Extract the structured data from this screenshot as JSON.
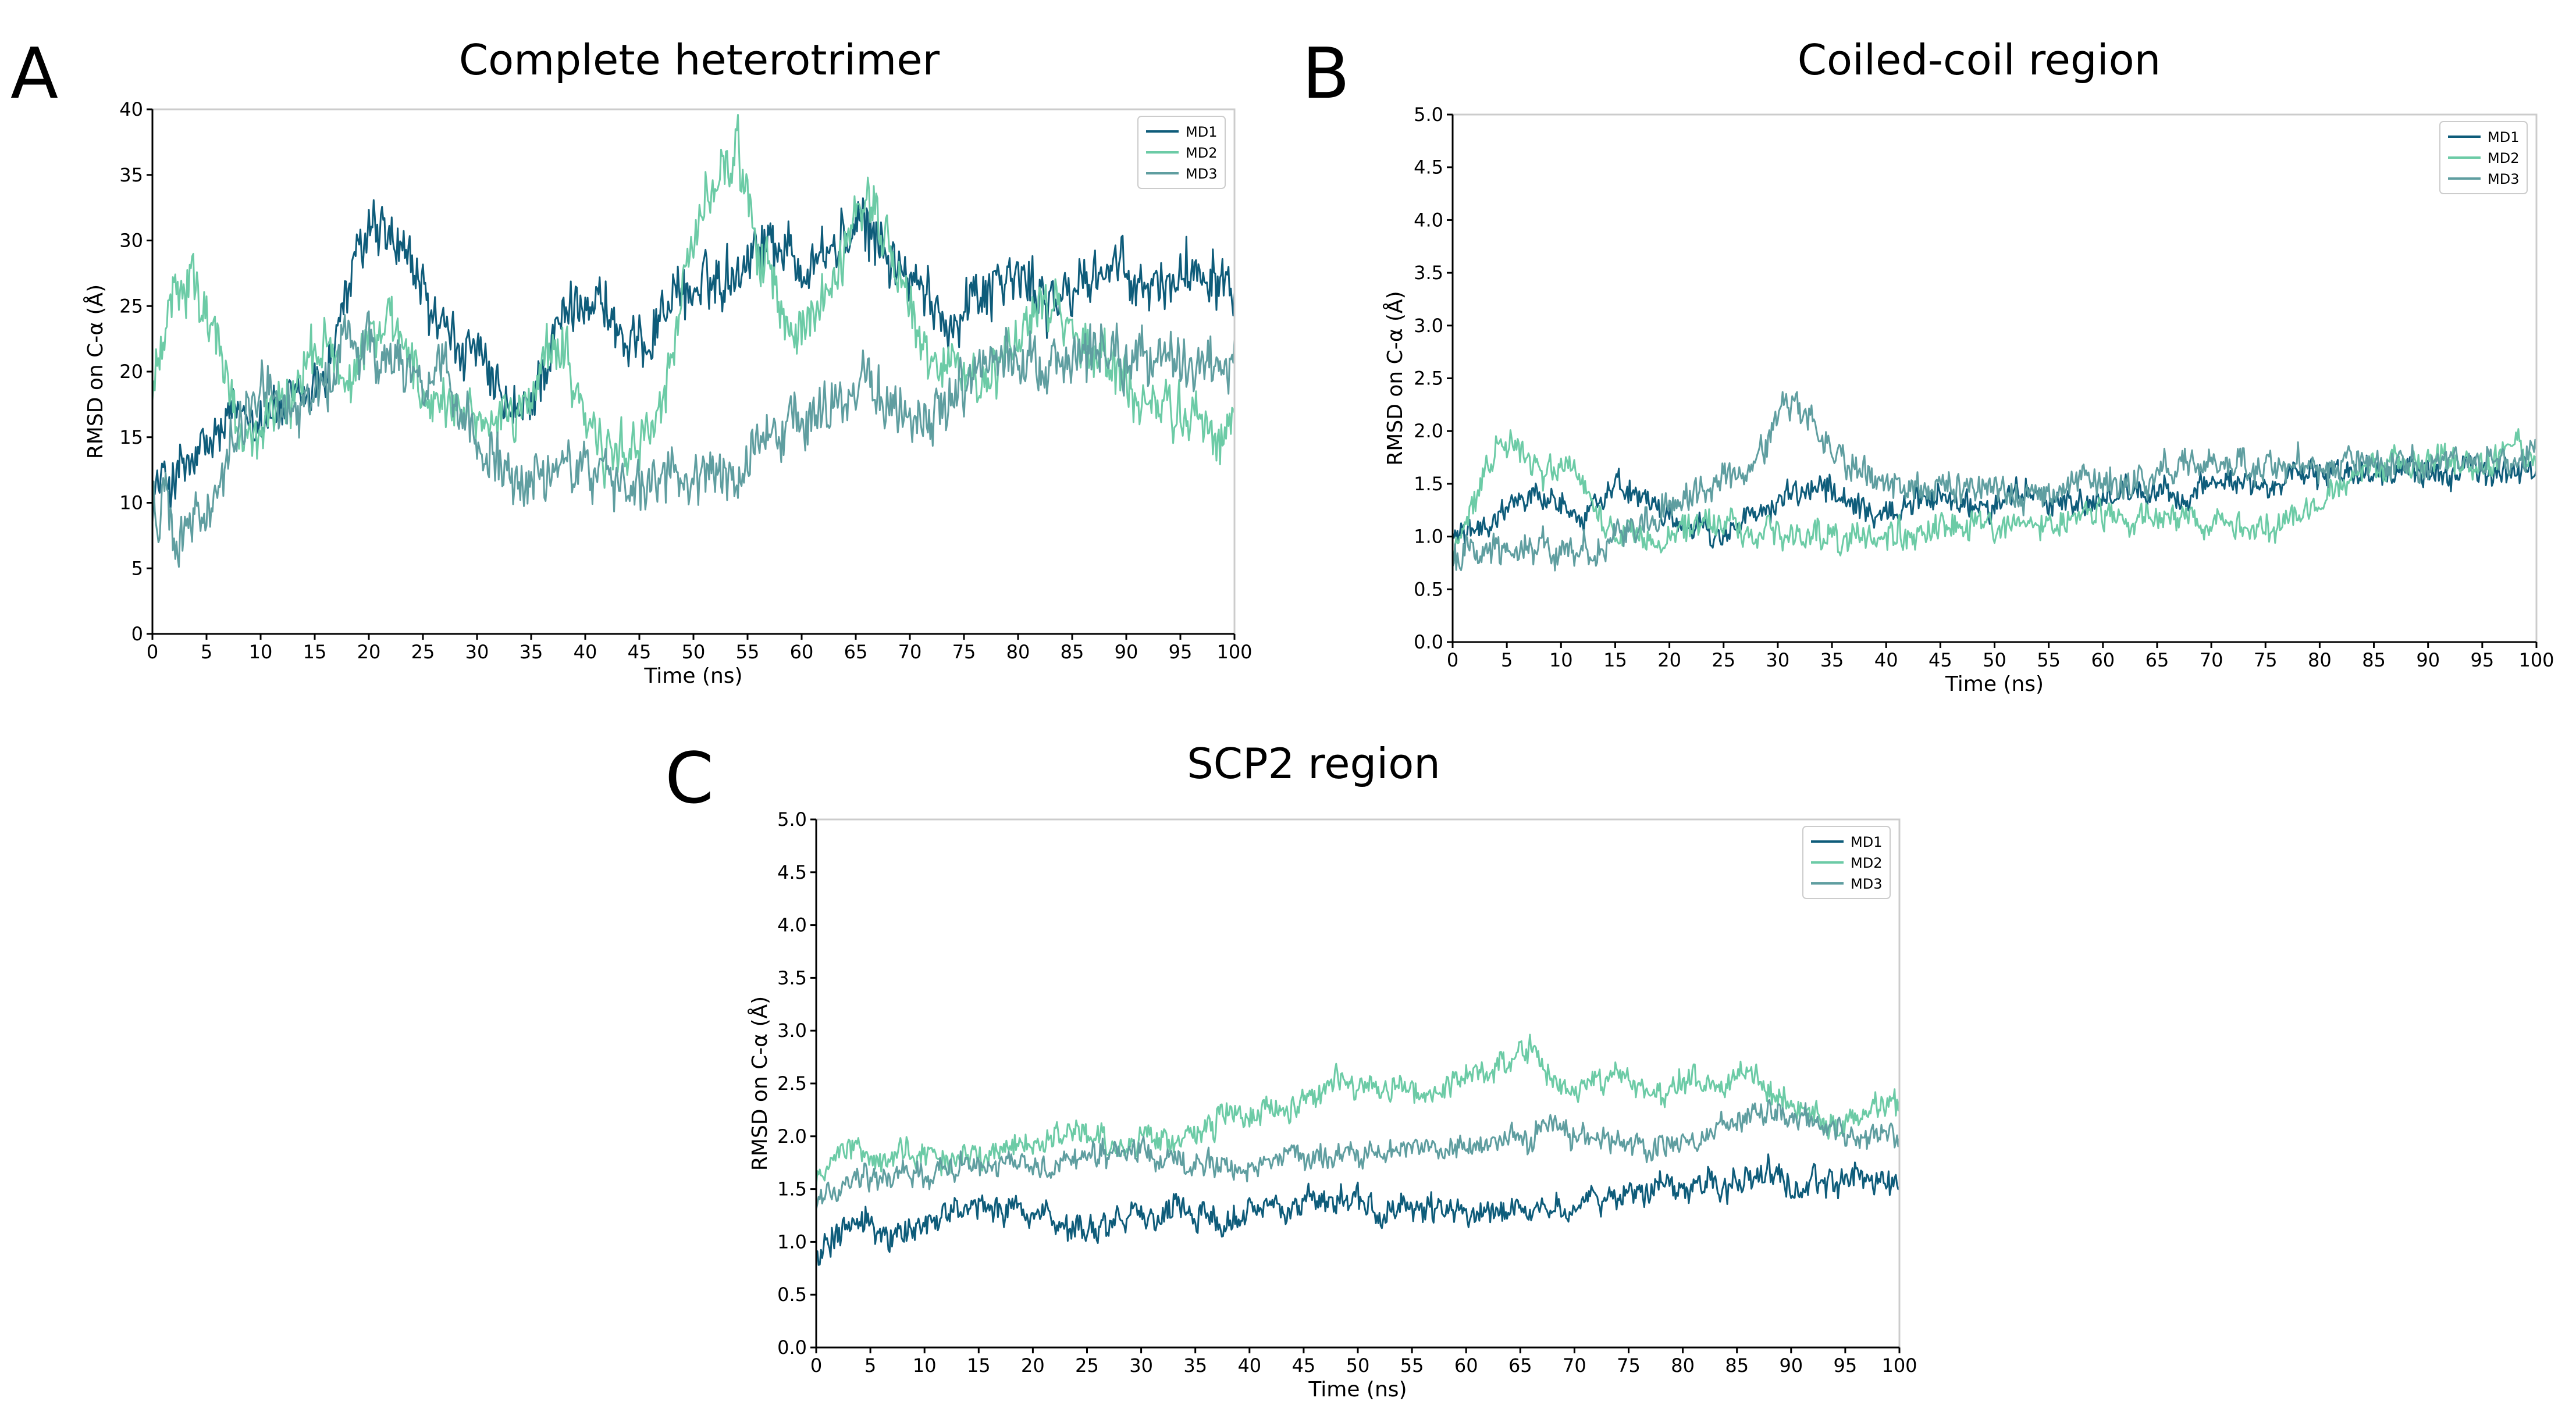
{
  "colors": {
    "MD1": "#0e5c7a",
    "MD2": "#6ccba6",
    "MD3": "#5f9ea0",
    "axis": "#000000",
    "frame": "#cccccc"
  },
  "chart_data": [
    {
      "panel": "A",
      "type": "line",
      "title": "Complete heterotrimer",
      "xlabel": "Time (ns)",
      "ylabel": "RMSD on C-α (Å)",
      "xlim": [
        0,
        100
      ],
      "ylim": [
        0,
        40
      ],
      "xticks": [
        0,
        5,
        10,
        15,
        20,
        25,
        30,
        35,
        40,
        45,
        50,
        55,
        60,
        65,
        70,
        75,
        80,
        85,
        90,
        95,
        100
      ],
      "yticks": [
        0,
        5,
        10,
        15,
        20,
        25,
        30,
        35,
        40
      ],
      "ytick_decimals": 0,
      "grid": false,
      "legend_position": "top-right",
      "series": [
        {
          "name": "MD1",
          "x": [
            0,
            2,
            4,
            6,
            8,
            10,
            12,
            14,
            16,
            18,
            20,
            22,
            24,
            26,
            28,
            30,
            32,
            34,
            36,
            38,
            40,
            42,
            44,
            46,
            48,
            50,
            52,
            54,
            56,
            58,
            60,
            62,
            64,
            66,
            68,
            70,
            72,
            74,
            76,
            78,
            80,
            82,
            84,
            86,
            88,
            90,
            92,
            94,
            96,
            98,
            100
          ],
          "values": [
            11,
            12,
            13,
            15,
            17,
            17,
            17,
            18,
            20,
            26,
            31,
            30,
            28,
            24,
            22,
            21,
            18,
            16,
            20,
            24,
            26,
            25,
            21,
            23,
            26,
            26,
            27,
            28,
            30,
            30,
            28,
            29,
            30,
            31,
            29,
            27,
            25,
            24,
            26,
            27,
            27,
            26,
            25,
            27,
            28,
            27,
            26,
            27,
            28,
            28,
            27
          ],
          "noise": 2.0
        },
        {
          "name": "MD2",
          "x": [
            0,
            2,
            4,
            6,
            8,
            10,
            12,
            14,
            16,
            18,
            20,
            22,
            24,
            26,
            28,
            30,
            32,
            34,
            36,
            38,
            40,
            42,
            44,
            46,
            48,
            50,
            52,
            54,
            56,
            58,
            60,
            62,
            64,
            66,
            68,
            70,
            72,
            74,
            76,
            78,
            80,
            82,
            84,
            86,
            88,
            90,
            92,
            94,
            96,
            98,
            100
          ],
          "values": [
            18,
            27,
            26,
            22,
            15,
            15,
            17,
            20,
            23,
            19,
            22,
            24,
            21,
            17,
            16,
            17,
            15,
            17,
            21,
            22,
            16,
            13,
            14,
            16,
            21,
            30,
            34,
            37,
            30,
            25,
            22,
            25,
            29,
            33,
            30,
            24,
            21,
            20,
            19,
            20,
            23,
            25,
            24,
            22,
            21,
            19,
            18,
            17,
            17,
            16,
            16
          ],
          "noise": 2.0
        },
        {
          "name": "MD3",
          "x": [
            0,
            2,
            4,
            6,
            8,
            10,
            12,
            14,
            16,
            18,
            20,
            22,
            24,
            26,
            28,
            30,
            32,
            34,
            36,
            38,
            40,
            42,
            44,
            46,
            48,
            50,
            52,
            54,
            56,
            58,
            60,
            62,
            64,
            66,
            68,
            70,
            72,
            74,
            76,
            78,
            80,
            82,
            84,
            86,
            88,
            90,
            92,
            94,
            96,
            98,
            100
          ],
          "values": [
            10,
            8,
            8,
            11,
            16,
            19,
            18,
            17,
            19,
            22,
            22,
            20,
            20,
            20,
            18,
            15,
            13,
            12,
            12,
            13,
            13,
            12,
            11,
            11,
            12,
            12,
            13,
            13,
            14,
            16,
            16,
            17,
            18,
            19,
            18,
            17,
            17,
            18,
            20,
            20,
            21,
            21,
            20,
            21,
            22,
            21,
            21,
            21,
            20,
            21,
            20
          ],
          "noise": 2.0
        }
      ]
    },
    {
      "panel": "B",
      "type": "line",
      "title": "Coiled-coil region",
      "xlabel": "Time (ns)",
      "ylabel": "RMSD on C-α (Å)",
      "xlim": [
        0,
        100
      ],
      "ylim": [
        0,
        5
      ],
      "xticks": [
        0,
        5,
        10,
        15,
        20,
        25,
        30,
        35,
        40,
        45,
        50,
        55,
        60,
        65,
        70,
        75,
        80,
        85,
        90,
        95,
        100
      ],
      "yticks": [
        0,
        0.5,
        1,
        1.5,
        2,
        2.5,
        3,
        3.5,
        4,
        4.5,
        5
      ],
      "ytick_decimals": 1,
      "grid": false,
      "legend_position": "top-right",
      "series": [
        {
          "name": "MD1",
          "x": [
            0,
            2,
            4,
            6,
            8,
            10,
            12,
            14,
            16,
            18,
            20,
            22,
            24,
            26,
            28,
            30,
            32,
            34,
            36,
            38,
            40,
            42,
            44,
            46,
            48,
            50,
            52,
            54,
            56,
            58,
            60,
            62,
            64,
            66,
            68,
            70,
            72,
            74,
            76,
            78,
            80,
            82,
            84,
            86,
            88,
            90,
            92,
            94,
            96,
            98,
            100
          ],
          "values": [
            1.0,
            1.1,
            1.2,
            1.3,
            1.4,
            1.3,
            1.2,
            1.4,
            1.5,
            1.3,
            1.2,
            1.1,
            1.0,
            1.1,
            1.2,
            1.3,
            1.4,
            1.5,
            1.3,
            1.2,
            1.2,
            1.3,
            1.3,
            1.4,
            1.3,
            1.3,
            1.4,
            1.4,
            1.3,
            1.3,
            1.3,
            1.4,
            1.4,
            1.4,
            1.4,
            1.5,
            1.5,
            1.5,
            1.5,
            1.6,
            1.6,
            1.6,
            1.6,
            1.6,
            1.6,
            1.6,
            1.6,
            1.6,
            1.6,
            1.6,
            1.6
          ],
          "noise": 0.12
        },
        {
          "name": "MD2",
          "x": [
            0,
            2,
            4,
            6,
            8,
            10,
            12,
            14,
            16,
            18,
            20,
            22,
            24,
            26,
            28,
            30,
            32,
            34,
            36,
            38,
            40,
            42,
            44,
            46,
            48,
            50,
            52,
            54,
            56,
            58,
            60,
            62,
            64,
            66,
            68,
            70,
            72,
            74,
            76,
            78,
            80,
            82,
            84,
            86,
            88,
            90,
            92,
            94,
            96,
            98,
            100
          ],
          "values": [
            0.9,
            1.3,
            1.8,
            1.9,
            1.6,
            1.7,
            1.5,
            1.1,
            1.0,
            1.0,
            1.0,
            1.1,
            1.1,
            1.1,
            1.0,
            1.0,
            1.0,
            1.0,
            1.0,
            1.0,
            1.0,
            1.0,
            1.1,
            1.1,
            1.1,
            1.1,
            1.1,
            1.1,
            1.1,
            1.2,
            1.2,
            1.2,
            1.2,
            1.2,
            1.2,
            1.1,
            1.1,
            1.1,
            1.1,
            1.2,
            1.3,
            1.5,
            1.6,
            1.7,
            1.7,
            1.7,
            1.7,
            1.7,
            1.7,
            1.8,
            1.8
          ],
          "noise": 0.13
        },
        {
          "name": "MD3",
          "x": [
            0,
            2,
            4,
            6,
            8,
            10,
            12,
            14,
            16,
            18,
            20,
            22,
            24,
            26,
            28,
            30,
            32,
            34,
            36,
            38,
            40,
            42,
            44,
            46,
            48,
            50,
            52,
            54,
            56,
            58,
            60,
            62,
            64,
            66,
            68,
            70,
            72,
            74,
            76,
            78,
            80,
            82,
            84,
            86,
            88,
            90,
            92,
            94,
            96,
            98,
            100
          ],
          "values": [
            0.8,
            0.8,
            0.9,
            0.9,
            0.9,
            0.8,
            0.9,
            1.0,
            1.0,
            1.2,
            1.3,
            1.4,
            1.5,
            1.6,
            1.7,
            2.1,
            2.3,
            1.9,
            1.7,
            1.6,
            1.5,
            1.5,
            1.5,
            1.5,
            1.4,
            1.4,
            1.4,
            1.4,
            1.4,
            1.5,
            1.5,
            1.5,
            1.5,
            1.6,
            1.7,
            1.7,
            1.7,
            1.7,
            1.7,
            1.7,
            1.7,
            1.7,
            1.7,
            1.7,
            1.7,
            1.7,
            1.7,
            1.7,
            1.7,
            1.7,
            1.8
          ],
          "noise": 0.14
        }
      ]
    },
    {
      "panel": "C",
      "type": "line",
      "title": "SCP2 region",
      "xlabel": "Time (ns)",
      "ylabel": "RMSD on C-α (Å)",
      "xlim": [
        0,
        100
      ],
      "ylim": [
        0,
        5
      ],
      "xticks": [
        0,
        5,
        10,
        15,
        20,
        25,
        30,
        35,
        40,
        45,
        50,
        55,
        60,
        65,
        70,
        75,
        80,
        85,
        90,
        95,
        100
      ],
      "yticks": [
        0,
        0.5,
        1,
        1.5,
        2,
        2.5,
        3,
        3.5,
        4,
        4.5,
        5
      ],
      "ytick_decimals": 1,
      "grid": false,
      "legend_position": "top-right",
      "series": [
        {
          "name": "MD1",
          "x": [
            0,
            2,
            4,
            6,
            8,
            10,
            12,
            14,
            16,
            18,
            20,
            22,
            24,
            26,
            28,
            30,
            32,
            34,
            36,
            38,
            40,
            42,
            44,
            46,
            48,
            50,
            52,
            54,
            56,
            58,
            60,
            62,
            64,
            66,
            68,
            70,
            72,
            74,
            76,
            78,
            80,
            82,
            84,
            86,
            88,
            90,
            92,
            94,
            96,
            98,
            100
          ],
          "values": [
            0.9,
            1.1,
            1.2,
            1.1,
            1.1,
            1.2,
            1.2,
            1.3,
            1.3,
            1.3,
            1.3,
            1.2,
            1.1,
            1.1,
            1.2,
            1.2,
            1.3,
            1.3,
            1.2,
            1.2,
            1.3,
            1.3,
            1.3,
            1.4,
            1.4,
            1.4,
            1.3,
            1.3,
            1.3,
            1.3,
            1.3,
            1.3,
            1.3,
            1.3,
            1.3,
            1.3,
            1.4,
            1.4,
            1.5,
            1.5,
            1.5,
            1.5,
            1.5,
            1.6,
            1.7,
            1.5,
            1.5,
            1.6,
            1.6,
            1.6,
            1.6
          ],
          "noise": 0.13
        },
        {
          "name": "MD2",
          "x": [
            0,
            2,
            4,
            6,
            8,
            10,
            12,
            14,
            16,
            18,
            20,
            22,
            24,
            26,
            28,
            30,
            32,
            34,
            36,
            38,
            40,
            42,
            44,
            46,
            48,
            50,
            52,
            54,
            56,
            58,
            60,
            62,
            64,
            66,
            68,
            70,
            72,
            74,
            76,
            78,
            80,
            82,
            84,
            86,
            88,
            90,
            92,
            94,
            96,
            98,
            100
          ],
          "values": [
            1.6,
            1.8,
            1.9,
            1.7,
            1.8,
            1.9,
            1.8,
            1.8,
            1.8,
            1.9,
            1.9,
            2.0,
            2.0,
            2.0,
            1.9,
            2.0,
            2.0,
            2.0,
            2.1,
            2.2,
            2.2,
            2.3,
            2.3,
            2.4,
            2.6,
            2.5,
            2.4,
            2.5,
            2.4,
            2.4,
            2.6,
            2.6,
            2.7,
            2.8,
            2.5,
            2.4,
            2.5,
            2.6,
            2.5,
            2.4,
            2.5,
            2.5,
            2.5,
            2.6,
            2.4,
            2.3,
            2.2,
            2.1,
            2.2,
            2.3,
            2.3
          ],
          "noise": 0.12
        },
        {
          "name": "MD3",
          "x": [
            0,
            2,
            4,
            6,
            8,
            10,
            12,
            14,
            16,
            18,
            20,
            22,
            24,
            26,
            28,
            30,
            32,
            34,
            36,
            38,
            40,
            42,
            44,
            46,
            48,
            50,
            52,
            54,
            56,
            58,
            60,
            62,
            64,
            66,
            68,
            70,
            72,
            74,
            76,
            78,
            80,
            82,
            84,
            86,
            88,
            90,
            92,
            94,
            96,
            98,
            100
          ],
          "values": [
            1.4,
            1.5,
            1.6,
            1.6,
            1.6,
            1.6,
            1.7,
            1.7,
            1.7,
            1.7,
            1.7,
            1.7,
            1.8,
            1.8,
            1.9,
            1.8,
            1.8,
            1.8,
            1.7,
            1.7,
            1.7,
            1.8,
            1.8,
            1.8,
            1.8,
            1.8,
            1.8,
            1.9,
            1.9,
            1.9,
            1.9,
            1.9,
            2.0,
            2.0,
            2.1,
            2.0,
            2.0,
            2.0,
            1.9,
            1.9,
            1.9,
            2.0,
            2.1,
            2.2,
            2.2,
            2.2,
            2.1,
            2.1,
            2.0,
            2.0,
            2.0
          ],
          "noise": 0.11
        }
      ]
    }
  ]
}
